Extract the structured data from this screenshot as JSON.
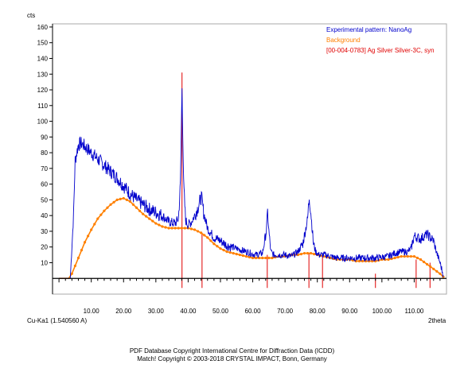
{
  "chart_data": {
    "type": "line",
    "ylabel": "cts",
    "xlabel": "2theta",
    "radiation_label": "Cu-Ka1 (1.540560 A)",
    "xlim": [
      -2,
      120
    ],
    "ylim": [
      -10,
      162
    ],
    "x_ticks": [
      10,
      20,
      30,
      40,
      50,
      60,
      70,
      80,
      90,
      100,
      110
    ],
    "x_tick_labels": [
      "10.00",
      "20.00",
      "30.00",
      "40.00",
      "50.00",
      "60.00",
      "70.00",
      "80.00",
      "90.00",
      "100.00",
      "110.00"
    ],
    "y_ticks": [
      10,
      20,
      30,
      40,
      50,
      60,
      70,
      80,
      90,
      100,
      110,
      120,
      130,
      140,
      150,
      160
    ],
    "y_tick_labels": [
      "10",
      "20",
      "30",
      "40",
      "50",
      "60",
      "70",
      "80",
      "90",
      "100",
      "110",
      "120",
      "130",
      "140",
      "150",
      "160"
    ],
    "legend_position": "top-right",
    "series": [
      {
        "name": "Experimental pattern: NanoAg",
        "color": "#0000cc",
        "x": [
          0,
          3.5,
          4.5,
          5,
          6,
          7,
          8,
          9,
          10,
          12,
          14,
          16,
          18,
          20,
          22,
          24,
          26,
          28,
          30,
          32,
          34,
          36,
          37,
          37.6,
          38.1,
          38.6,
          39.2,
          40,
          41,
          42,
          43,
          44.1,
          44.8,
          46,
          48,
          50,
          52,
          55,
          58,
          61,
          63,
          64.2,
          64.6,
          65,
          65.6,
          66.5,
          68,
          70,
          72,
          74,
          75.5,
          77,
          77.5,
          78,
          78.8,
          79.5,
          80.5,
          81.5,
          82.5,
          84,
          86,
          90,
          94,
          98,
          102,
          104,
          106,
          108,
          109,
          110,
          111,
          112,
          113,
          114,
          115,
          116,
          117,
          118,
          119
        ],
        "y": [
          0,
          0,
          40,
          75,
          85,
          86,
          84,
          82,
          80,
          76,
          72,
          68,
          64,
          59,
          54,
          50,
          47,
          44,
          42,
          40,
          36,
          35,
          38,
          60,
          122,
          60,
          37,
          34,
          36,
          40,
          45,
          52,
          42,
          32,
          26,
          24,
          21,
          19,
          17,
          15,
          16,
          30,
          42,
          30,
          17,
          15,
          15,
          15,
          14,
          17,
          22,
          38,
          52,
          42,
          22,
          17,
          15,
          15,
          15,
          14,
          13,
          13,
          13,
          13,
          14,
          16,
          17,
          17,
          19,
          27,
          26,
          25,
          27,
          28,
          26,
          24,
          16,
          10,
          2
        ]
      },
      {
        "name": "Background",
        "color": "#ff8000",
        "x": [
          0,
          3,
          4,
          5,
          6,
          7,
          8,
          10,
          12,
          14,
          16,
          18,
          20,
          22,
          24,
          26,
          28,
          30,
          32,
          34,
          36,
          38,
          40,
          42,
          44,
          46,
          48,
          50,
          52,
          54,
          56,
          58,
          60,
          62,
          64,
          66,
          68,
          70,
          72,
          74,
          76,
          78,
          80,
          82,
          84,
          86,
          88,
          90,
          92,
          94,
          96,
          98,
          100,
          102,
          104,
          106,
          108,
          110,
          112,
          114,
          116,
          118,
          119
        ],
        "y": [
          0,
          0,
          3,
          8,
          13,
          18,
          23,
          31,
          38,
          43,
          47,
          50,
          51,
          49,
          45,
          41,
          38,
          35,
          33,
          32,
          32,
          32,
          32,
          31,
          29,
          26,
          22,
          19,
          17,
          16,
          15,
          14,
          13,
          13,
          13,
          13,
          14,
          14,
          15,
          15,
          16,
          16,
          15,
          14,
          13,
          12,
          12,
          12,
          11,
          11,
          11,
          11,
          12,
          12,
          13,
          14,
          14,
          14,
          12,
          9,
          6,
          3,
          1
        ]
      }
    ],
    "reference_lines": {
      "name": "[00-004-0783] Ag Silver Silver-3C, syn",
      "color": "#e00000",
      "positions": [
        38.1,
        44.3,
        64.5,
        77.4,
        81.6,
        98.0,
        110.6,
        114.9
      ],
      "heights": [
        131,
        29,
        15,
        16,
        16,
        3,
        12,
        10
      ]
    }
  },
  "footer": {
    "line1": "PDF Database Copyright International Centre for Diffraction Data (ICDD)",
    "line2": "Match! Copyright © 2003-2018 CRYSTAL IMPACT, Bonn, Germany"
  }
}
